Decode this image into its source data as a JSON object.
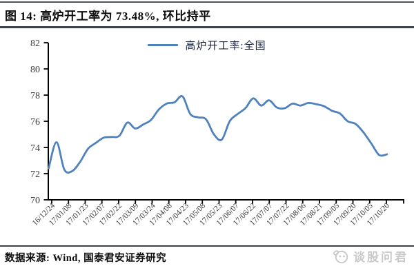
{
  "header": {
    "title": "图 14: 高炉开工率为 73.48%, 环比持平"
  },
  "chart_data": {
    "type": "line",
    "title": "",
    "legend_position": "top-center",
    "grid": false,
    "line_color": "#4f81bd",
    "axis_color": "#000000",
    "tick_label_color": "#3a3a3a",
    "ylim": [
      70,
      82
    ],
    "y_ticks": [
      70,
      72,
      74,
      76,
      78,
      80,
      82
    ],
    "x_tick_labels": [
      "16/12/24",
      "17/01/08",
      "17/01/23",
      "17/02/07",
      "17/02/22",
      "17/03/09",
      "17/03/24",
      "17/04/08",
      "17/04/23",
      "17/05/08",
      "17/05/23",
      "17/06/07",
      "17/06/22",
      "17/07/07",
      "17/07/22",
      "17/08/06",
      "17/08/21",
      "17/09/05",
      "17/09/20",
      "17/10/05",
      "17/10/20"
    ],
    "series": [
      {
        "name": "高炉开工率:全国",
        "sampling": "weekly",
        "values": [
          72.4,
          74.4,
          72.3,
          72.2,
          72.9,
          73.9,
          74.35,
          74.75,
          74.8,
          74.9,
          75.9,
          75.45,
          75.75,
          76.1,
          76.9,
          77.35,
          77.45,
          77.9,
          76.55,
          76.3,
          76.15,
          75.0,
          74.6,
          76.0,
          76.55,
          77.0,
          77.75,
          77.2,
          77.6,
          77.05,
          77.0,
          77.35,
          77.2,
          77.4,
          77.3,
          77.15,
          76.8,
          76.6,
          76.0,
          75.8,
          75.15,
          74.3,
          73.42,
          73.48
        ]
      }
    ],
    "latest_value_label": "73.48%"
  },
  "footer": {
    "source": "数据来源: Wind, 国泰君安证券研究"
  },
  "watermark": {
    "text": "谈股问君",
    "icon": "panda-logo",
    "color": "#c9c9c9"
  },
  "theme": {
    "rule_color": "#39424b",
    "title_color": "#0d0d0d"
  }
}
